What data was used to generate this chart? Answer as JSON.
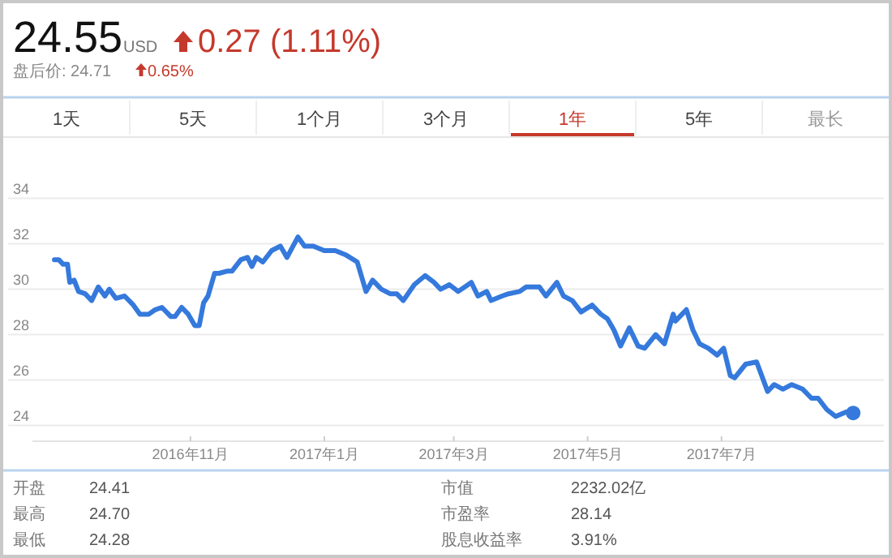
{
  "chart_data": {
    "type": "line",
    "title": "24.55",
    "subtitle": "盘后价: 24.71",
    "annotations": [
      "USD",
      "0.27 (1.11%)",
      "0.65%",
      "1天",
      "5天",
      "1个月",
      "3个月",
      "1年",
      "5年",
      "最长",
      "开盘",
      "24.41",
      "最高",
      "24.70",
      "最低",
      "24.28",
      "市值",
      "2232.02亿",
      "市盈率",
      "28.14",
      "股息收益率",
      "3.91%"
    ],
    "x": [
      "2016-08-31",
      "2016-09-02",
      "2016-09-04",
      "2016-09-06",
      "2016-09-07",
      "2016-09-09",
      "2016-09-11",
      "2016-09-14",
      "2016-09-17",
      "2016-09-20",
      "2016-09-23",
      "2016-09-25",
      "2016-09-28",
      "2016-10-02",
      "2016-10-06",
      "2016-10-09",
      "2016-10-13",
      "2016-10-16",
      "2016-10-19",
      "2016-10-23",
      "2016-10-25",
      "2016-10-28",
      "2016-10-31",
      "2016-11-03",
      "2016-11-05",
      "2016-11-07",
      "2016-11-09",
      "2016-11-12",
      "2016-11-14",
      "2016-11-18",
      "2016-11-20",
      "2016-11-24",
      "2016-11-27",
      "2016-11-29",
      "2016-12-01",
      "2016-12-04",
      "2016-12-08",
      "2016-12-12",
      "2016-12-15",
      "2016-12-20",
      "2016-12-23",
      "2016-12-27",
      "2017-01-01",
      "2017-01-06",
      "2017-01-11",
      "2017-01-16",
      "2017-01-20",
      "2017-01-23",
      "2017-01-27",
      "2017-01-31",
      "2017-02-03",
      "2017-02-06",
      "2017-02-11",
      "2017-02-16",
      "2017-02-20",
      "2017-02-23",
      "2017-02-27",
      "2017-03-03",
      "2017-03-09",
      "2017-03-12",
      "2017-03-16",
      "2017-03-18",
      "2017-03-23",
      "2017-03-26",
      "2017-03-31",
      "2017-04-03",
      "2017-04-09",
      "2017-04-12",
      "2017-04-17",
      "2017-04-20",
      "2017-04-24",
      "2017-04-28",
      "2017-05-03",
      "2017-05-07",
      "2017-05-10",
      "2017-05-13",
      "2017-05-16",
      "2017-05-20",
      "2017-05-24",
      "2017-05-27",
      "2017-06-01",
      "2017-06-05",
      "2017-06-09",
      "2017-06-10",
      "2017-06-15",
      "2017-06-18",
      "2017-06-21",
      "2017-06-25",
      "2017-06-29",
      "2017-07-02",
      "2017-07-05",
      "2017-07-07",
      "2017-07-12",
      "2017-07-17",
      "2017-07-22",
      "2017-07-25",
      "2017-07-29",
      "2017-08-02",
      "2017-08-07",
      "2017-08-11",
      "2017-08-14",
      "2017-08-18",
      "2017-08-22",
      "2017-08-27",
      "2017-08-30"
    ],
    "series": [
      {
        "color": "#3579dc",
        "values": [
          31.3,
          31.3,
          31.1,
          31.1,
          30.3,
          30.4,
          29.9,
          29.8,
          29.5,
          30.1,
          29.7,
          30.0,
          29.6,
          29.7,
          29.3,
          28.9,
          28.9,
          29.1,
          29.2,
          28.8,
          28.8,
          29.2,
          28.9,
          28.4,
          28.4,
          29.4,
          29.7,
          30.7,
          30.7,
          30.8,
          30.8,
          31.3,
          31.4,
          31.0,
          31.4,
          31.2,
          31.7,
          31.9,
          31.4,
          32.3,
          31.9,
          31.9,
          31.7,
          31.7,
          31.5,
          31.2,
          29.9,
          30.4,
          30.0,
          29.8,
          29.8,
          29.5,
          30.2,
          30.6,
          30.3,
          30.0,
          30.2,
          29.9,
          30.3,
          29.7,
          29.9,
          29.5,
          29.7,
          29.8,
          29.9,
          30.1,
          30.1,
          29.7,
          30.3,
          29.7,
          29.5,
          29.0,
          29.3,
          28.9,
          28.7,
          28.2,
          27.5,
          28.3,
          27.5,
          27.4,
          28.0,
          27.6,
          28.9,
          28.6,
          29.1,
          28.2,
          27.6,
          27.4,
          27.1,
          27.4,
          26.2,
          26.1,
          26.7,
          26.8,
          25.5,
          25.8,
          25.6,
          25.8,
          25.6,
          25.2,
          25.2,
          24.7,
          24.4,
          24.6,
          24.55
        ]
      }
    ],
    "xlim": [
      "2016-08-21",
      "2017-09-13"
    ],
    "xticks": [
      {
        "value": "2016-11-01",
        "label": "2016年11月"
      },
      {
        "value": "2017-01-01",
        "label": "2017年1月"
      },
      {
        "value": "2017-03-01",
        "label": "2017年3月"
      },
      {
        "value": "2017-05-01",
        "label": "2017年5月"
      },
      {
        "value": "2017-07-01",
        "label": "2017年7月"
      }
    ],
    "ylim": [
      24,
      34
    ],
    "yticks": [
      24,
      26,
      28,
      30,
      32,
      34
    ],
    "grid": "y",
    "line_style": "solid"
  }
}
